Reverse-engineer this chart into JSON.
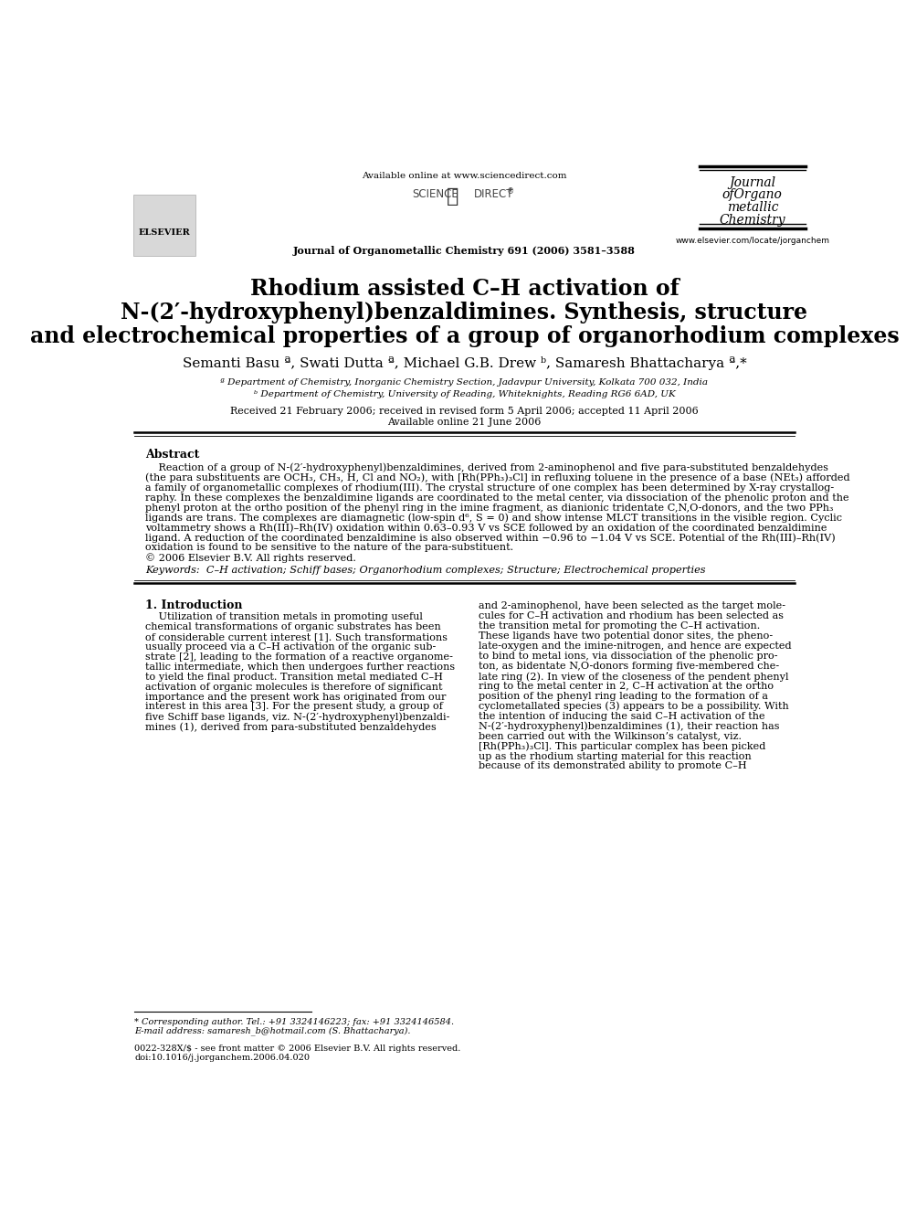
{
  "bg_color": "#ffffff",
  "title_line1": "Rhodium assisted C–H activation of",
  "title_line2": "N-(2′-hydroxyphenyl)benzaldimines. Synthesis, structure",
  "title_line3": "and electrochemical properties of a group of organorhodium complexes",
  "authors": "Semanti Basu ª, Swati Dutta ª, Michael G.B. Drew ᵇ, Samaresh Bhattacharya ª,*",
  "affil_a": "ª Department of Chemistry, Inorganic Chemistry Section, Jadavpur University, Kolkata 700 032, India",
  "affil_b": "ᵇ Department of Chemistry, University of Reading, Whiteknights, Reading RG6 6AD, UK",
  "received": "Received 21 February 2006; received in revised form 5 April 2006; accepted 11 April 2006",
  "available": "Available online 21 June 2006",
  "journal_line": "Journal of Organometallic Chemistry 691 (2006) 3581–3588",
  "available_online": "Available online at www.sciencedirect.com",
  "journal_name_line1": "Journal",
  "journal_name_line2": "ofOrgano",
  "journal_name_line3": "metallic",
  "journal_name_line4": "Chemistry",
  "elsevier_url": "www.elsevier.com/locate/jorganchem",
  "abstract_title": "Abstract",
  "keywords_text": "Keywords:  C–H activation; Schiff bases; Organorhodium complexes; Structure; Electrochemical properties",
  "section1_title": "1. Introduction",
  "footnote_star": "* Corresponding author. Tel.: +91 3324146223; fax: +91 3324146584.",
  "footnote_email": "E-mail address: samaresh_b@hotmail.com (S. Bhattacharya).",
  "issn_line": "0022-328X/$ - see front matter © 2006 Elsevier B.V. All rights reserved.",
  "doi_line": "doi:10.1016/j.jorganchem.2006.04.020",
  "abstract_lines": [
    "    Reaction of a group of N-(2′-hydroxyphenyl)benzaldimines, derived from 2-aminophenol and five para-substituted benzaldehydes",
    "(the para substituents are OCH₃, CH₃, H, Cl and NO₂), with [Rh(PPh₃)₃Cl] in refluxing toluene in the presence of a base (NEt₃) afforded",
    "a family of organometallic complexes of rhodium(III). The crystal structure of one complex has been determined by X-ray crystallog-",
    "raphy. In these complexes the benzaldimine ligands are coordinated to the metal center, via dissociation of the phenolic proton and the",
    "phenyl proton at the ortho position of the phenyl ring in the imine fragment, as dianionic tridentate C,N,O-donors, and the two PPh₃",
    "ligands are trans. The complexes are diamagnetic (low-spin d⁶, S = 0) and show intense MLCT transitions in the visible region. Cyclic",
    "voltammetry shows a Rh(III)–Rh(IV) oxidation within 0.63–0.93 V vs SCE followed by an oxidation of the coordinated benzaldimine",
    "ligand. A reduction of the coordinated benzaldimine is also observed within −0.96 to −1.04 V vs SCE. Potential of the Rh(III)–Rh(IV)",
    "oxidation is found to be sensitive to the nature of the para-substituent.",
    "© 2006 Elsevier B.V. All rights reserved."
  ],
  "intro_left_lines": [
    "    Utilization of transition metals in promoting useful",
    "chemical transformations of organic substrates has been",
    "of considerable current interest [1]. Such transformations",
    "usually proceed via a C–H activation of the organic sub-",
    "strate [2], leading to the formation of a reactive organome-",
    "tallic intermediate, which then undergoes further reactions",
    "to yield the final product. Transition metal mediated C–H",
    "activation of organic molecules is therefore of significant",
    "importance and the present work has originated from our",
    "interest in this area [3]. For the present study, a group of",
    "five Schiff base ligands, viz. N-(2′-hydroxyphenyl)benzaldi-",
    "mines (1), derived from para-substituted benzaldehydes"
  ],
  "intro_right_lines": [
    "and 2-aminophenol, have been selected as the target mole-",
    "cules for C–H activation and rhodium has been selected as",
    "the transition metal for promoting the C–H activation.",
    "These ligands have two potential donor sites, the pheno-",
    "late-oxygen and the imine-nitrogen, and hence are expected",
    "to bind to metal ions, via dissociation of the phenolic pro-",
    "ton, as bidentate N,O-donors forming five-membered che-",
    "late ring (2). In view of the closeness of the pendent phenyl",
    "ring to the metal center in 2, C–H activation at the ortho",
    "position of the phenyl ring leading to the formation of a",
    "cyclometallated species (3) appears to be a possibility. With",
    "the intention of inducing the said C–H activation of the",
    "N-(2′-hydroxyphenyl)benzaldimines (1), their reaction has",
    "been carried out with the Wilkinson’s catalyst, viz.",
    "[Rh(PPh₃)₃Cl]. This particular complex has been picked",
    "up as the rhodium starting material for this reaction",
    "because of its demonstrated ability to promote C–H"
  ]
}
